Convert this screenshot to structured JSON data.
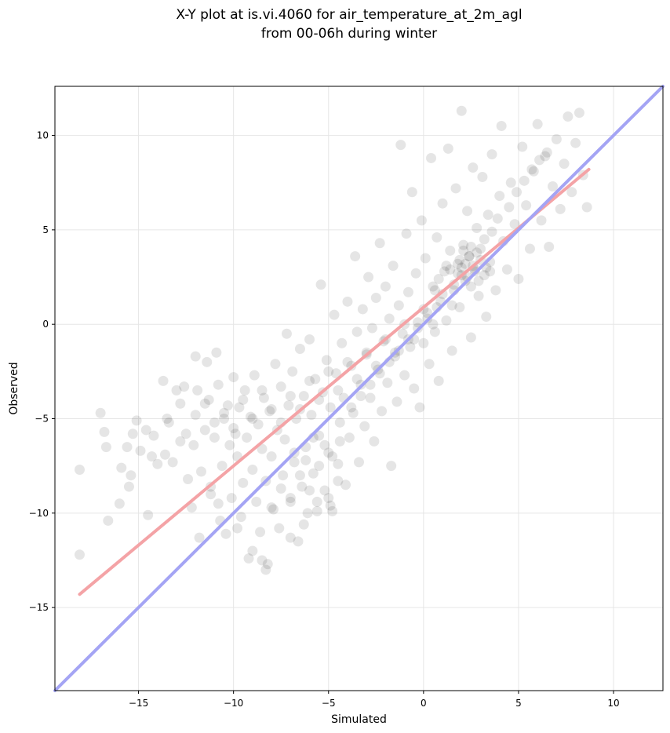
{
  "chart_data": {
    "type": "scatter",
    "title": [
      "X-Y plot at is.vi.4060 for air_temperature_at_2m_agl",
      "from 00-06h during winter"
    ],
    "xlabel": "Simulated",
    "ylabel": "Observed",
    "xlim": [
      -19.4,
      12.6
    ],
    "ylim": [
      -19.4,
      12.6
    ],
    "xticks": [
      -15,
      -10,
      -5,
      0,
      5,
      10
    ],
    "yticks": [
      -15,
      -10,
      -5,
      0,
      5,
      10
    ],
    "grid": true,
    "point_color": "#000000",
    "point_alpha": 0.1,
    "points": [
      [
        -18.1,
        -7.7
      ],
      [
        -18.1,
        -12.2
      ],
      [
        -17.0,
        -4.7
      ],
      [
        -16.8,
        -5.7
      ],
      [
        -16.7,
        -6.5
      ],
      [
        -16.6,
        -10.4
      ],
      [
        -16.0,
        -9.5
      ],
      [
        -15.9,
        -7.6
      ],
      [
        -15.6,
        -6.5
      ],
      [
        -15.3,
        -5.8
      ],
      [
        -15.5,
        -8.6
      ],
      [
        -15.4,
        -8.0
      ],
      [
        -15.1,
        -5.1
      ],
      [
        -14.9,
        -6.7
      ],
      [
        -14.6,
        -5.6
      ],
      [
        -14.5,
        -10.1
      ],
      [
        -14.2,
        -5.9
      ],
      [
        -14.0,
        -7.4
      ],
      [
        -13.7,
        -3.0
      ],
      [
        -13.6,
        -6.9
      ],
      [
        -13.4,
        -5.2
      ],
      [
        -13.2,
        -7.3
      ],
      [
        -13.0,
        -3.5
      ],
      [
        -12.8,
        -4.2
      ],
      [
        -12.6,
        -3.3
      ],
      [
        -12.5,
        -5.8
      ],
      [
        -12.4,
        -8.2
      ],
      [
        -12.2,
        -9.7
      ],
      [
        -12.0,
        -1.7
      ],
      [
        -12.1,
        -6.4
      ],
      [
        -11.9,
        -3.5
      ],
      [
        -11.8,
        -11.3
      ],
      [
        -11.7,
        -7.8
      ],
      [
        -11.5,
        -5.6
      ],
      [
        -11.4,
        -2.0
      ],
      [
        -11.3,
        -4.0
      ],
      [
        -11.2,
        -9.0
      ],
      [
        -11.0,
        -6.0
      ],
      [
        -10.9,
        -1.5
      ],
      [
        -10.8,
        -3.2
      ],
      [
        -10.7,
        -10.4
      ],
      [
        -10.6,
        -7.5
      ],
      [
        -10.5,
        -5.0
      ],
      [
        -10.4,
        -11.1
      ],
      [
        -10.3,
        -4.3
      ],
      [
        -10.2,
        -6.4
      ],
      [
        -10.1,
        -9.2
      ],
      [
        -10.0,
        -2.8
      ],
      [
        -9.9,
        -5.8
      ],
      [
        -9.8,
        -7.0
      ],
      [
        -9.7,
        -4.4
      ],
      [
        -9.6,
        -10.2
      ],
      [
        -9.5,
        -8.4
      ],
      [
        -9.4,
        -3.5
      ],
      [
        -9.3,
        -6.0
      ],
      [
        -9.2,
        -12.4
      ],
      [
        -9.1,
        -4.9
      ],
      [
        -9.0,
        -7.7
      ],
      [
        -8.9,
        -2.7
      ],
      [
        -8.8,
        -9.4
      ],
      [
        -8.7,
        -5.3
      ],
      [
        -8.6,
        -11.0
      ],
      [
        -8.5,
        -6.6
      ],
      [
        -8.4,
        -3.9
      ],
      [
        -8.3,
        -8.3
      ],
      [
        -8.2,
        -12.7
      ],
      [
        -8.1,
        -4.6
      ],
      [
        -8.0,
        -7.0
      ],
      [
        -7.9,
        -9.8
      ],
      [
        -7.8,
        -2.1
      ],
      [
        -7.7,
        -5.6
      ],
      [
        -7.6,
        -10.8
      ],
      [
        -7.5,
        -3.3
      ],
      [
        -7.4,
        -8.0
      ],
      [
        -7.3,
        -6.1
      ],
      [
        -7.2,
        -0.5
      ],
      [
        -7.1,
        -4.3
      ],
      [
        -7.0,
        -9.2
      ],
      [
        -6.9,
        -2.5
      ],
      [
        -6.8,
        -7.3
      ],
      [
        -6.7,
        -5.0
      ],
      [
        -6.6,
        -11.5
      ],
      [
        -6.5,
        -1.3
      ],
      [
        -6.4,
        -8.6
      ],
      [
        -6.3,
        -3.8
      ],
      [
        -6.2,
        -6.5
      ],
      [
        -6.1,
        -10.0
      ],
      [
        -6.0,
        -0.8
      ],
      [
        -5.9,
        -4.8
      ],
      [
        -5.8,
        -7.9
      ],
      [
        -5.7,
        -2.9
      ],
      [
        -5.6,
        -9.4
      ],
      [
        -5.5,
        -5.9
      ],
      [
        -5.4,
        2.1
      ],
      [
        -5.3,
        -3.6
      ],
      [
        -5.2,
        -8.8
      ],
      [
        -5.1,
        -1.9
      ],
      [
        -5.0,
        -6.8
      ],
      [
        -4.9,
        -4.4
      ],
      [
        -4.8,
        -9.9
      ],
      [
        -4.7,
        0.5
      ],
      [
        -4.6,
        -2.6
      ],
      [
        -4.5,
        -7.4
      ],
      [
        -4.4,
        -5.2
      ],
      [
        -4.3,
        -1.0
      ],
      [
        -4.2,
        -3.9
      ],
      [
        -4.1,
        -8.5
      ],
      [
        -4.0,
        1.2
      ],
      [
        -3.9,
        -6.0
      ],
      [
        -3.8,
        -2.2
      ],
      [
        -3.7,
        -4.7
      ],
      [
        -3.6,
        3.6
      ],
      [
        -3.5,
        -0.4
      ],
      [
        -3.4,
        -7.3
      ],
      [
        -3.3,
        -3.2
      ],
      [
        -3.2,
        0.8
      ],
      [
        -3.1,
        -5.4
      ],
      [
        -3.0,
        -1.6
      ],
      [
        -2.9,
        2.5
      ],
      [
        -2.8,
        -3.9
      ],
      [
        -2.7,
        -0.2
      ],
      [
        -2.6,
        -6.2
      ],
      [
        -2.5,
        1.4
      ],
      [
        -2.4,
        -2.4
      ],
      [
        -2.3,
        4.3
      ],
      [
        -2.2,
        -4.6
      ],
      [
        -2.1,
        -0.9
      ],
      [
        -2.0,
        2.0
      ],
      [
        -1.9,
        -3.1
      ],
      [
        -1.8,
        0.3
      ],
      [
        -1.7,
        -7.5
      ],
      [
        -1.6,
        3.1
      ],
      [
        -1.5,
        -1.7
      ],
      [
        -1.4,
        -4.1
      ],
      [
        -1.3,
        1.0
      ],
      [
        -1.2,
        9.5
      ],
      [
        -1.1,
        -0.5
      ],
      [
        -1.0,
        -2.7
      ],
      [
        -0.9,
        4.8
      ],
      [
        -0.8,
        1.7
      ],
      [
        -0.7,
        -1.2
      ],
      [
        -0.6,
        7.0
      ],
      [
        -0.5,
        -3.4
      ],
      [
        -0.4,
        2.7
      ],
      [
        -0.3,
        0.1
      ],
      [
        -0.2,
        -4.4
      ],
      [
        -0.1,
        5.5
      ],
      [
        0.0,
        -1.0
      ],
      [
        0.1,
        3.5
      ],
      [
        0.2,
        0.6
      ],
      [
        0.3,
        -2.1
      ],
      [
        0.4,
        8.8
      ],
      [
        0.5,
        2.0
      ],
      [
        0.6,
        -0.4
      ],
      [
        0.7,
        4.6
      ],
      [
        0.8,
        -3.0
      ],
      [
        0.9,
        1.2
      ],
      [
        1.0,
        6.4
      ],
      [
        1.1,
        2.8
      ],
      [
        1.2,
        0.2
      ],
      [
        1.3,
        9.3
      ],
      [
        1.4,
        3.9
      ],
      [
        1.5,
        -1.4
      ],
      [
        1.6,
        1.8
      ],
      [
        1.7,
        7.2
      ],
      [
        1.8,
        3.2
      ],
      [
        1.9,
        0.9
      ],
      [
        2.0,
        11.3
      ],
      [
        2.1,
        4.2
      ],
      [
        2.2,
        2.3
      ],
      [
        2.3,
        6.0
      ],
      [
        2.4,
        3.6
      ],
      [
        2.5,
        -0.7
      ],
      [
        2.6,
        8.3
      ],
      [
        2.7,
        2.9
      ],
      [
        2.8,
        5.1
      ],
      [
        2.9,
        1.5
      ],
      [
        3.0,
        4.0
      ],
      [
        3.1,
        7.8
      ],
      [
        3.2,
        2.6
      ],
      [
        3.3,
        0.4
      ],
      [
        3.4,
        5.8
      ],
      [
        3.5,
        3.3
      ],
      [
        3.6,
        9.0
      ],
      [
        3.8,
        1.8
      ],
      [
        4.0,
        6.8
      ],
      [
        4.2,
        4.4
      ],
      [
        4.1,
        10.5
      ],
      [
        4.4,
        2.9
      ],
      [
        4.6,
        7.5
      ],
      [
        4.8,
        5.3
      ],
      [
        5.0,
        2.4
      ],
      [
        5.2,
        9.4
      ],
      [
        5.4,
        6.3
      ],
      [
        5.6,
        4.0
      ],
      [
        5.8,
        8.1
      ],
      [
        6.0,
        10.6
      ],
      [
        6.2,
        5.5
      ],
      [
        6.4,
        8.9
      ],
      [
        6.6,
        4.1
      ],
      [
        6.8,
        7.3
      ],
      [
        7.0,
        9.8
      ],
      [
        7.2,
        6.1
      ],
      [
        7.4,
        8.5
      ],
      [
        7.6,
        11.0
      ],
      [
        7.8,
        7.0
      ],
      [
        8.0,
        9.6
      ],
      [
        8.2,
        11.2
      ],
      [
        8.4,
        7.9
      ],
      [
        8.6,
        6.2
      ],
      [
        -12.0,
        -4.8
      ],
      [
        -11.5,
        -4.2
      ],
      [
        -11.0,
        -5.2
      ],
      [
        -10.5,
        -4.7
      ],
      [
        -10.0,
        -5.5
      ],
      [
        -9.5,
        -4.0
      ],
      [
        -9.0,
        -5.0
      ],
      [
        -8.5,
        -3.5
      ],
      [
        -8.0,
        -4.5
      ],
      [
        -7.5,
        -5.2
      ],
      [
        -7.0,
        -3.8
      ],
      [
        -6.5,
        -4.5
      ],
      [
        -6.0,
        -3.0
      ],
      [
        -5.5,
        -4.0
      ],
      [
        -5.0,
        -2.5
      ],
      [
        -4.5,
        -3.5
      ],
      [
        -4.0,
        -2.0
      ],
      [
        -3.5,
        -2.9
      ],
      [
        -3.0,
        -1.5
      ],
      [
        -2.5,
        -2.2
      ],
      [
        -2.0,
        -0.8
      ],
      [
        -1.5,
        -1.5
      ],
      [
        -1.0,
        0.0
      ],
      [
        -0.5,
        -0.8
      ],
      [
        0.0,
        0.8
      ],
      [
        0.5,
        0.0
      ],
      [
        1.0,
        1.6
      ],
      [
        1.5,
        1.0
      ],
      [
        2.0,
        2.6
      ],
      [
        2.5,
        2.0
      ],
      [
        3.0,
        3.4
      ],
      [
        3.5,
        2.8
      ],
      [
        -6.5,
        -8.0
      ],
      [
        -6.0,
        -8.8
      ],
      [
        -5.5,
        -7.5
      ],
      [
        -5.0,
        -9.2
      ],
      [
        -4.5,
        -8.3
      ],
      [
        -7.0,
        -9.4
      ],
      [
        -7.5,
        -8.7
      ],
      [
        -8.0,
        -9.7
      ],
      [
        -5.2,
        -6.4
      ],
      [
        -4.8,
        -7.0
      ],
      [
        -6.2,
        -7.2
      ],
      [
        -5.8,
        -6.0
      ],
      [
        -4.4,
        -6.2
      ],
      [
        -6.8,
        -6.8
      ],
      [
        2.2,
        3.2
      ],
      [
        2.4,
        3.6
      ],
      [
        2.0,
        3.0
      ],
      [
        2.6,
        3.1
      ],
      [
        1.8,
        2.7
      ],
      [
        2.8,
        3.8
      ],
      [
        2.3,
        2.5
      ],
      [
        2.1,
        3.9
      ],
      [
        2.7,
        2.8
      ],
      [
        1.9,
        3.4
      ],
      [
        2.5,
        4.1
      ],
      [
        3.2,
        4.5
      ],
      [
        1.6,
        2.1
      ],
      [
        2.9,
        2.3
      ],
      [
        3.3,
        3.0
      ],
      [
        1.4,
        2.9
      ],
      [
        0.6,
        1.8
      ],
      [
        0.8,
        2.4
      ],
      [
        1.2,
        3.1
      ],
      [
        3.6,
        4.9
      ],
      [
        3.9,
        5.6
      ],
      [
        4.5,
        6.2
      ],
      [
        4.9,
        7.0
      ],
      [
        5.3,
        7.6
      ],
      [
        5.7,
        8.2
      ],
      [
        6.1,
        8.7
      ],
      [
        6.5,
        9.1
      ],
      [
        -3.8,
        -4.4
      ],
      [
        -3.3,
        -3.8
      ],
      [
        -2.8,
        -3.2
      ],
      [
        -2.3,
        -2.6
      ],
      [
        -1.8,
        -2.0
      ],
      [
        -1.3,
        -1.4
      ],
      [
        -0.8,
        -0.8
      ],
      [
        -0.3,
        -0.2
      ],
      [
        0.2,
        0.3
      ],
      [
        0.7,
        0.9
      ],
      [
        -13.5,
        -5.0
      ],
      [
        -12.8,
        -6.2
      ],
      [
        -14.3,
        -7.0
      ],
      [
        -11.2,
        -8.6
      ],
      [
        -10.8,
        -9.5
      ],
      [
        -9.8,
        -10.8
      ],
      [
        -9.0,
        -12.0
      ],
      [
        -8.5,
        -12.5
      ],
      [
        -8.3,
        -13.0
      ],
      [
        -7.0,
        -11.3
      ],
      [
        -6.3,
        -10.6
      ],
      [
        -5.6,
        -9.9
      ],
      [
        -4.9,
        -9.6
      ]
    ],
    "fit_line": {
      "color": "#f4a3a6",
      "points": [
        [
          -18.1,
          -14.3
        ],
        [
          8.7,
          8.2
        ]
      ]
    },
    "identity_line": {
      "color": "#a4a4f4",
      "points": [
        [
          -19.4,
          -19.4
        ],
        [
          12.6,
          12.6
        ]
      ]
    }
  }
}
